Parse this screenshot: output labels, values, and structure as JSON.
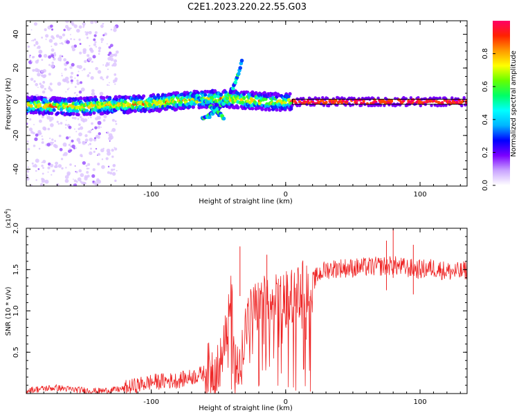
{
  "figure": {
    "title": "C2E1.2023.220.22.55.G03"
  },
  "chart_data": [
    {
      "type": "heatmap",
      "name": "spectrogram",
      "xlabel": "Height of straight line (km)",
      "ylabel": "Frequency (Hz)",
      "xlim": [
        -193,
        135
      ],
      "ylim": [
        -50,
        48
      ],
      "xticks": [
        -100,
        0,
        100
      ],
      "yticks": [
        -40,
        -20,
        0,
        20,
        40
      ],
      "tick_labels_x": [
        "-100",
        "0",
        "100"
      ],
      "tick_labels_y": [
        "-40",
        "-20",
        "0",
        "20",
        "40"
      ],
      "colorbar": {
        "label": "Normalized spectral amplitude",
        "range": [
          0.0,
          1.0
        ],
        "ticks": [
          0.0,
          0.2,
          0.4,
          0.6,
          0.8
        ],
        "tick_labels": [
          "0.0",
          "0.2",
          "0.4",
          "0.6",
          "0.8"
        ],
        "stops": [
          "#ffffff",
          "#c9a3ff",
          "#7b00ff",
          "#0000ff",
          "#00b4ff",
          "#00ffff",
          "#00ff66",
          "#66ff00",
          "#ffff00",
          "#ff9900",
          "#ff2200",
          "#ff0066"
        ]
      },
      "features": {
        "main_band": {
          "x": [
            -193,
            -160,
            -130,
            -100,
            -70,
            -50,
            -30,
            -10,
            0,
            135
          ],
          "y": [
            -2,
            -3,
            -2,
            -1,
            1,
            2,
            1,
            0,
            0,
            0
          ]
        },
        "rising_arc": {
          "x": [
            -62,
            -56,
            -50,
            -44,
            -38,
            -32
          ],
          "y": [
            -10,
            -8,
            -4,
            2,
            10,
            25
          ]
        },
        "descending_arc": {
          "x": [
            -70,
            -64,
            -58,
            -52,
            -46
          ],
          "y": [
            4,
            2,
            -1,
            -5,
            -10
          ]
        },
        "noisy_column_x_range": [
          -193,
          -125
        ]
      }
    },
    {
      "type": "line",
      "name": "snr",
      "xlabel": "Height of straight line (km)",
      "ylabel": "SNR (10 * v/v)",
      "scale_note": "(x10",
      "scale_exp": "4",
      "scale_close": ")",
      "xlim": [
        -193,
        135
      ],
      "ylim": [
        0.0,
        2.0
      ],
      "xticks": [
        -100,
        0,
        100
      ],
      "yticks": [
        0.5,
        1.0,
        1.5,
        2.0
      ],
      "tick_labels_x": [
        "-100",
        "0",
        "100"
      ],
      "tick_labels_y": [
        "0.5",
        "1.0",
        "1.5",
        "2.0"
      ],
      "color": "#ee2222",
      "series": [
        {
          "name": "SNR",
          "x": [
            -193,
            -180,
            -170,
            -160,
            -150,
            -140,
            -130,
            -120,
            -110,
            -100,
            -90,
            -80,
            -70,
            -60,
            -50,
            -45,
            -40,
            -38,
            -36,
            -34,
            -30,
            -25,
            -20,
            -15,
            -10,
            -5,
            0,
            5,
            10,
            15,
            20,
            25,
            30,
            40,
            50,
            60,
            70,
            80,
            90,
            100,
            110,
            120,
            130,
            135
          ],
          "values": [
            0.04,
            0.06,
            0.07,
            0.05,
            0.04,
            0.03,
            0.04,
            0.06,
            0.1,
            0.14,
            0.15,
            0.16,
            0.2,
            0.25,
            0.35,
            0.6,
            1.2,
            0.35,
            0.3,
            0.45,
            0.8,
            1.0,
            1.05,
            1.1,
            1.08,
            1.12,
            1.15,
            1.2,
            1.25,
            1.3,
            1.35,
            1.45,
            1.5,
            1.52,
            1.52,
            1.53,
            1.54,
            1.55,
            1.52,
            1.5,
            1.52,
            1.48,
            1.47,
            1.5
          ]
        }
      ],
      "spikes": [
        {
          "x": -34,
          "y": 1.78
        },
        {
          "x": -14,
          "y": 1.68
        },
        {
          "x": 80,
          "y": 2.0
        },
        {
          "x": 75,
          "y": 1.85
        },
        {
          "x": 95,
          "y": 1.8
        }
      ]
    }
  ]
}
